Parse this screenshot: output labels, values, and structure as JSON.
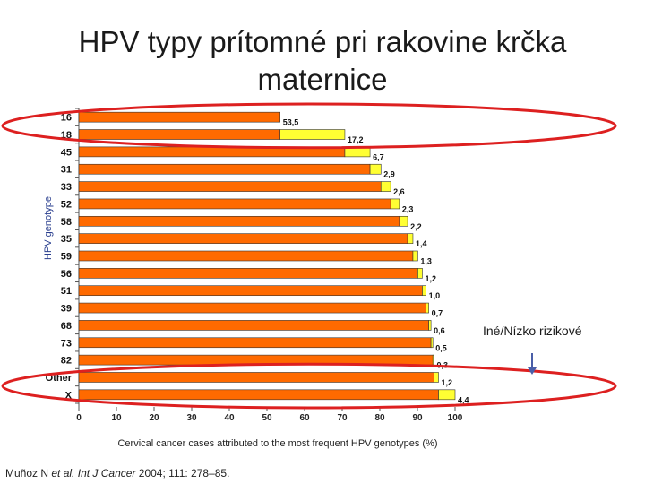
{
  "title": "HPV typy prítomné pri rakovine krčka maternice",
  "annotation": "Iné/Nízko rizikové",
  "source": {
    "authors": "Muñoz N",
    "etal": "et al.",
    "journal": "Int J Cancer",
    "rest": "2004; 111: 278–85."
  },
  "colors": {
    "bar": "#ff6a00",
    "segment": "#ffff33",
    "ellipse": "#dd2020",
    "arrow": "#4a5ea8",
    "ylabel": "#2a3f8f"
  },
  "chart_data": {
    "type": "bar",
    "orientation": "horizontal",
    "xlabel": "Cervical cancer cases attributed to the most frequent HPV genotypes (%)",
    "ylabel": "HPV genotype",
    "xlim": [
      0,
      100
    ],
    "xticks": [
      "0",
      "10",
      "20",
      "30",
      "40",
      "50",
      "60",
      "70",
      "80",
      "90",
      "100"
    ],
    "categories": [
      "16",
      "18",
      "45",
      "31",
      "33",
      "52",
      "58",
      "35",
      "59",
      "56",
      "51",
      "39",
      "68",
      "73",
      "82",
      "Other",
      "X"
    ],
    "data_labels": [
      "53,5",
      "17,2",
      "6,7",
      "2,9",
      "2,6",
      "2,3",
      "2,2",
      "1,4",
      "1,3",
      "1,2",
      "1,0",
      "0,7",
      "0,6",
      "0,5",
      "0,3",
      "1,2",
      "4,4"
    ],
    "series": [
      {
        "name": "",
        "values": [
          53.5,
          53.5,
          70.7,
          77.4,
          80.3,
          82.9,
          85.2,
          87.4,
          88.8,
          90.1,
          91.3,
          92.3,
          93.0,
          93.6,
          94.1,
          94.4,
          95.6
        ]
      },
      {
        "name": "",
        "values": [
          0,
          17.2,
          6.7,
          2.9,
          2.6,
          2.3,
          2.2,
          1.4,
          1.3,
          1.2,
          1.0,
          0.7,
          0.6,
          0.5,
          0.3,
          1.2,
          4.4
        ]
      }
    ],
    "highlighted_groups": [
      {
        "categories": [
          "16",
          "18"
        ]
      },
      {
        "categories": [
          "Other",
          "X"
        ]
      }
    ],
    "grid": false,
    "legend": "none"
  }
}
